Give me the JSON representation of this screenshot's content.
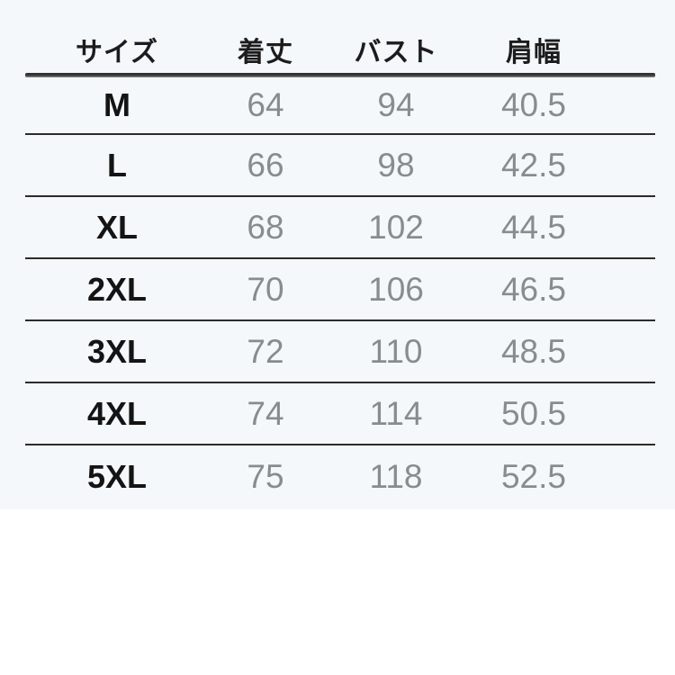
{
  "colors": {
    "sheet_background": "#f4f8fb",
    "page_background": "#ffffff",
    "rule_color": "#2b2b2b",
    "header_text": "#1c1c1c",
    "size_text": "#141414",
    "value_text": "#888c90"
  },
  "chart_data": {
    "type": "table",
    "columns": [
      "サイズ",
      "着丈",
      "バスト",
      "肩幅"
    ],
    "rows": [
      {
        "size": "M",
        "length": "64",
        "bust": "94",
        "shoulder": "40.5"
      },
      {
        "size": "L",
        "length": "66",
        "bust": "98",
        "shoulder": "42.5"
      },
      {
        "size": "XL",
        "length": "68",
        "bust": "102",
        "shoulder": "44.5"
      },
      {
        "size": "2XL",
        "length": "70",
        "bust": "106",
        "shoulder": "46.5"
      },
      {
        "size": "3XL",
        "length": "72",
        "bust": "110",
        "shoulder": "48.5"
      },
      {
        "size": "4XL",
        "length": "74",
        "bust": "114",
        "shoulder": "50.5"
      },
      {
        "size": "5XL",
        "length": "75",
        "bust": "118",
        "shoulder": "52.5"
      }
    ]
  }
}
